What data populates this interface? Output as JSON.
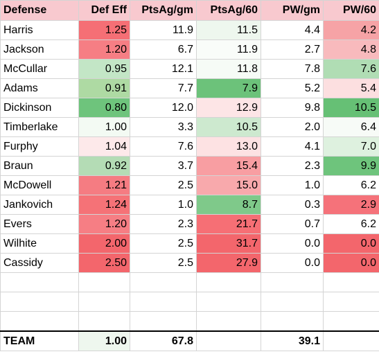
{
  "headers": [
    "Defense",
    "Def Eff",
    "PtsAg/gm",
    "PtsAg/60",
    "PW/gm",
    "PW/60"
  ],
  "rows": [
    {
      "name": "Harris",
      "def_eff": "1.25",
      "pts_ag_gm": "11.9",
      "pts_ag_60": "11.5",
      "pw_gm": "4.4",
      "pw_60": "4.2",
      "colors": [
        "#f56f75",
        "#ffffff",
        "#eef7ee",
        "#ffffff",
        "#f6a3a6"
      ]
    },
    {
      "name": "Jackson",
      "def_eff": "1.20",
      "pts_ag_gm": "6.7",
      "pts_ag_60": "11.9",
      "pw_gm": "2.7",
      "pw_60": "4.8",
      "colors": [
        "#f67e84",
        "#ffffff",
        "#f9fcf9",
        "#ffffff",
        "#f8babd"
      ]
    },
    {
      "name": "McCullar",
      "def_eff": "0.95",
      "pts_ag_gm": "12.1",
      "pts_ag_60": "11.8",
      "pw_gm": "7.8",
      "pw_60": "7.6",
      "colors": [
        "#c3e6c6",
        "#ffffff",
        "#f6fbf6",
        "#ffffff",
        "#b0ddb4"
      ]
    },
    {
      "name": "Adams",
      "def_eff": "0.91",
      "pts_ag_gm": "7.7",
      "pts_ag_60": "7.9",
      "pw_gm": "5.2",
      "pw_60": "5.4",
      "colors": [
        "#aedaa3",
        "#ffffff",
        "#6cc27a",
        "#ffffff",
        "#fcdfe0"
      ]
    },
    {
      "name": "Dickinson",
      "def_eff": "0.80",
      "pts_ag_gm": "12.0",
      "pts_ag_60": "12.9",
      "pw_gm": "9.8",
      "pw_60": "10.5",
      "colors": [
        "#6ec47c",
        "#ffffff",
        "#fde5e6",
        "#ffffff",
        "#66c075"
      ]
    },
    {
      "name": "Timberlake",
      "def_eff": "1.00",
      "pts_ag_gm": "3.3",
      "pts_ag_60": "10.5",
      "pw_gm": "2.0",
      "pw_60": "6.4",
      "colors": [
        "#f3faf3",
        "#ffffff",
        "#cde9cf",
        "#ffffff",
        "#f7fbf7"
      ]
    },
    {
      "name": "Furphy",
      "def_eff": "1.04",
      "pts_ag_gm": "7.6",
      "pts_ag_60": "13.0",
      "pw_gm": "4.1",
      "pw_60": "7.0",
      "colors": [
        "#fde9ea",
        "#ffffff",
        "#fde2e3",
        "#ffffff",
        "#def1df"
      ]
    },
    {
      "name": "Braun",
      "def_eff": "0.92",
      "pts_ag_gm": "3.7",
      "pts_ag_60": "15.4",
      "pw_gm": "2.3",
      "pw_60": "9.9",
      "colors": [
        "#b4dcb5",
        "#ffffff",
        "#f89ea2",
        "#ffffff",
        "#6ec47c"
      ]
    },
    {
      "name": "McDowell",
      "def_eff": "1.21",
      "pts_ag_gm": "2.5",
      "pts_ag_60": "15.0",
      "pw_gm": "1.0",
      "pw_60": "6.2",
      "colors": [
        "#f57c82",
        "#ffffff",
        "#f8a9ac",
        "#ffffff",
        "#ffffff"
      ]
    },
    {
      "name": "Jankovich",
      "def_eff": "1.24",
      "pts_ag_gm": "1.0",
      "pts_ag_60": "8.7",
      "pw_gm": "0.3",
      "pw_60": "2.9",
      "colors": [
        "#f57277",
        "#ffffff",
        "#7fc98a",
        "#ffffff",
        "#f5727a"
      ]
    },
    {
      "name": "Evers",
      "def_eff": "1.20",
      "pts_ag_gm": "2.3",
      "pts_ag_60": "21.7",
      "pw_gm": "0.7",
      "pw_60": "6.2",
      "colors": [
        "#f67e84",
        "#ffffff",
        "#f66f75",
        "#ffffff",
        "#ffffff"
      ]
    },
    {
      "name": "Wilhite",
      "def_eff": "2.00",
      "pts_ag_gm": "2.5",
      "pts_ag_60": "31.7",
      "pw_gm": "0.0",
      "pw_60": "0.0",
      "colors": [
        "#f3666c",
        "#ffffff",
        "#f3666c",
        "#ffffff",
        "#f3666c"
      ]
    },
    {
      "name": "Cassidy",
      "def_eff": "2.50",
      "pts_ag_gm": "2.5",
      "pts_ag_60": "27.9",
      "pw_gm": "0.0",
      "pw_60": "0.0",
      "colors": [
        "#f3666c",
        "#ffffff",
        "#f3666c",
        "#ffffff",
        "#f3666c"
      ]
    }
  ],
  "blank_rows": 3,
  "total": {
    "name": "TEAM",
    "def_eff": "1.00",
    "pts_ag_gm": "67.8",
    "pts_ag_60": "",
    "pw_gm": "39.1",
    "pw_60": "",
    "colors": [
      "#eef7ee",
      "#ffffff",
      "#ffffff",
      "#ffffff",
      "#ffffff"
    ]
  },
  "header_color": "#f8c9cf"
}
